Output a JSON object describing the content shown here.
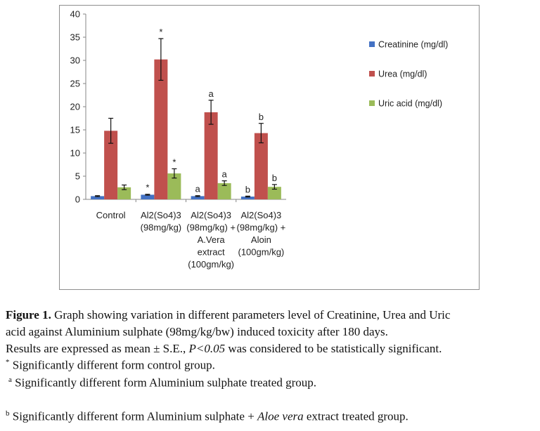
{
  "chart_data": {
    "type": "bar",
    "categories": [
      [
        "Control"
      ],
      [
        "Al2(So4)3",
        "(98mg/kg)"
      ],
      [
        "Al2(So4)3",
        "(98mg/kg) +",
        "A.Vera",
        "extract",
        "(100gm/kg)"
      ],
      [
        "Al2(So4)3",
        "(98mg/kg) +",
        "Aloin",
        "(100gm/kg)"
      ]
    ],
    "series": [
      {
        "name": "Creatinine (mg/dl)",
        "color": "#4472c4",
        "values": [
          0.7,
          1.0,
          0.7,
          0.6
        ],
        "errors": [
          0.1,
          0.1,
          0.1,
          0.1
        ],
        "labels": [
          "",
          "*",
          "a",
          "b"
        ]
      },
      {
        "name": "Urea (mg/dl)",
        "color": "#c0504d",
        "values": [
          14.8,
          30.2,
          18.8,
          14.3
        ],
        "errors": [
          2.7,
          4.5,
          2.6,
          2.1
        ],
        "labels": [
          "",
          "*",
          "a",
          "b"
        ]
      },
      {
        "name": "Uric acid (mg/dl)",
        "color": "#9bbb59",
        "values": [
          2.6,
          5.6,
          3.5,
          2.7
        ],
        "errors": [
          0.5,
          1.0,
          0.5,
          0.5
        ],
        "labels": [
          "",
          "*",
          "a",
          "b"
        ]
      }
    ],
    "ylim": [
      0,
      40
    ],
    "yticks": [
      0,
      5,
      10,
      15,
      20,
      25,
      30,
      35,
      40
    ],
    "grid": false,
    "legend_position": "right",
    "title": "",
    "xlabel": "",
    "ylabel": ""
  },
  "caption": {
    "figure_label": "Figure 1.",
    "line1_rest": " Graph showing variation in different parameters level of Creatinine, Urea and Uric",
    "line2": "acid against Aluminium sulphate (98mg/kg/bw) induced toxicity after 180 days.",
    "line3_pre": "Results are expressed as mean ± S.E., ",
    "line3_italic": "P<0.05",
    "line3_post": " was considered to be statistically significant.",
    "note1_mark": "*",
    "note1_text": " Significantly different form control group.",
    "note2_mark": "a",
    "note2_text": " Significantly different form Aluminium sulphate treated group.",
    "note3_mark": "b",
    "note3_text_pre": " Significantly different form Aluminium sulphate + ",
    "note3_italic": "Aloe vera",
    "note3_text_post": " extract treated group."
  }
}
